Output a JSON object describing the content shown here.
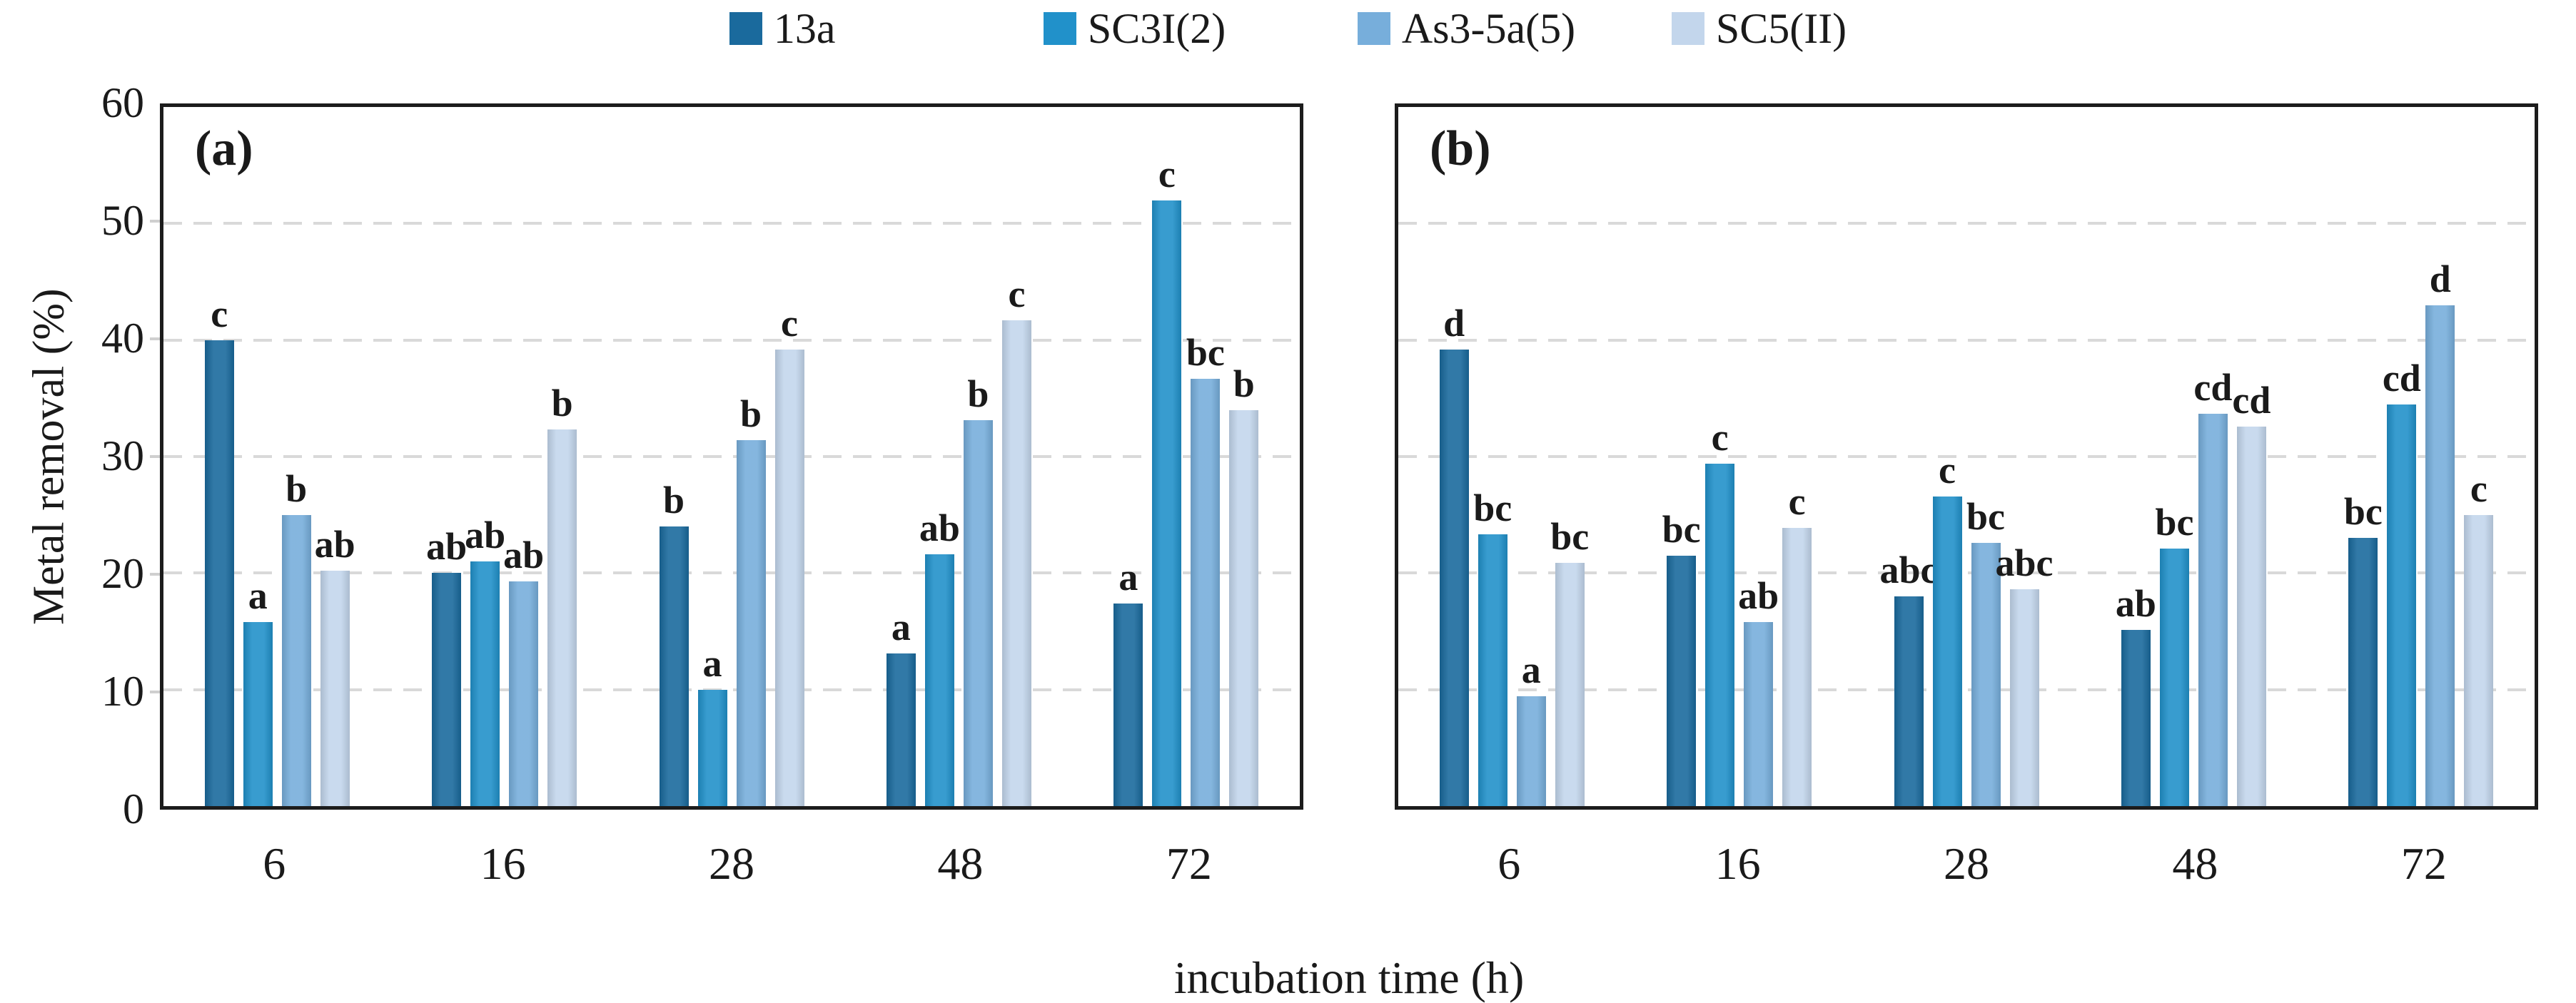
{
  "figure": {
    "y_axis_label": "Metal removal (%)",
    "x_axis_label": "incubation time (h)",
    "y_ticks": [
      60,
      50,
      40,
      30,
      20,
      10,
      0
    ],
    "colors": {
      "series_13a": "#1A6A9D",
      "series_SC3I2": "#2191CA",
      "series_As35a5": "#77AEDB",
      "series_SC5II": "#C3D6EC",
      "gridline": "#d9d9d9",
      "panel_border": "#1c1c1c"
    },
    "legend": [
      {
        "label": "13a",
        "color": "#1A6A9D"
      },
      {
        "label": "SC3I(2)",
        "color": "#2191CA"
      },
      {
        "label": "As3-5a(5)",
        "color": "#77AEDB"
      },
      {
        "label": "SC5(II)",
        "color": "#C3D6EC"
      }
    ]
  },
  "chart_data": [
    {
      "type": "bar",
      "panel_label": "(a)",
      "title": "",
      "xlabel": "incubation time (h)",
      "ylabel": "Metal removal (%)",
      "ylim": [
        0,
        60
      ],
      "grid": "dashed horizontal at 10,20,30,40,50",
      "legend_position": "top-center (shared)",
      "categories": [
        "6",
        "16",
        "28",
        "48",
        "72"
      ],
      "series": [
        {
          "name": "13a",
          "color": "#1A6A9D",
          "values": [
            40.0,
            20.0,
            24.0,
            13.1,
            17.4
          ],
          "sig_labels": [
            "c",
            "ab",
            "b",
            "a",
            "a"
          ]
        },
        {
          "name": "SC3I(2)",
          "color": "#2191CA",
          "values": [
            15.8,
            21.0,
            10.0,
            21.6,
            52.0
          ],
          "sig_labels": [
            "a",
            "ab",
            "a",
            "ab",
            "c"
          ]
        },
        {
          "name": "As3-5a(5)",
          "color": "#77AEDB",
          "values": [
            25.0,
            19.3,
            31.4,
            33.1,
            36.7
          ],
          "sig_labels": [
            "b",
            "ab",
            "b",
            "b",
            "bc"
          ]
        },
        {
          "name": "SC5(II)",
          "color": "#C3D6EC",
          "values": [
            20.2,
            32.3,
            39.2,
            41.7,
            34.0
          ],
          "sig_labels": [
            "ab",
            "b",
            "c",
            "c",
            "b"
          ]
        }
      ]
    },
    {
      "type": "bar",
      "panel_label": "(b)",
      "title": "",
      "xlabel": "incubation time (h)",
      "ylabel": "Metal removal (%)",
      "ylim": [
        0,
        60
      ],
      "grid": "dashed horizontal at 10,20,30,40,50",
      "legend_position": "top-center (shared)",
      "categories": [
        "6",
        "16",
        "28",
        "48",
        "72"
      ],
      "series": [
        {
          "name": "13a",
          "color": "#1A6A9D",
          "values": [
            39.2,
            21.5,
            18.0,
            15.1,
            23.0
          ],
          "sig_labels": [
            "d",
            "bc",
            "abc",
            "ab",
            "bc"
          ]
        },
        {
          "name": "SC3I(2)",
          "color": "#2191CA",
          "values": [
            23.3,
            29.4,
            26.6,
            22.1,
            34.5
          ],
          "sig_labels": [
            "bc",
            "c",
            "c",
            "bc",
            "cd"
          ]
        },
        {
          "name": "As3-5a(5)",
          "color": "#77AEDB",
          "values": [
            9.4,
            15.8,
            22.6,
            33.7,
            43.0
          ],
          "sig_labels": [
            "a",
            "ab",
            "bc",
            "cd",
            "d"
          ]
        },
        {
          "name": "SC5(II)",
          "color": "#C3D6EC",
          "values": [
            20.9,
            23.9,
            18.6,
            32.6,
            25.0
          ],
          "sig_labels": [
            "bc",
            "c",
            "abc",
            "cd",
            "c"
          ]
        }
      ]
    }
  ]
}
